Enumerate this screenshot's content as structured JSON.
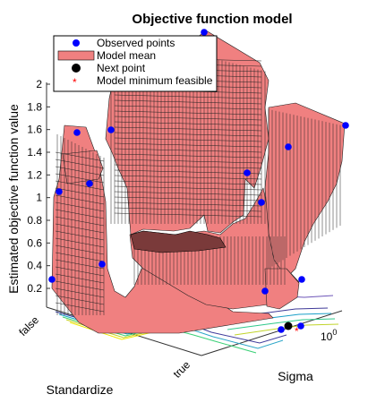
{
  "chart_data": {
    "type": "surface",
    "title": "Objective function model",
    "xlabel": "Sigma",
    "ylabel": "Standardize",
    "zlabel": "Estimated objective function value",
    "x_ticks": [
      "10⁰"
    ],
    "y_categories": [
      "false",
      "true"
    ],
    "z_ticks": [
      "0.2",
      "0.4",
      "0.6",
      "0.8",
      "1",
      "1.2",
      "1.4",
      "1.6",
      "1.8",
      "2"
    ],
    "zlim": [
      0.1,
      2.15
    ],
    "legend": {
      "position": "top-left",
      "entries": [
        {
          "label": "Observed points",
          "marker": "filled-circle",
          "color": "#0000ff"
        },
        {
          "label": "Model mean",
          "marker": "patch",
          "color": "#f08080"
        },
        {
          "label": "Next point",
          "marker": "filled-circle",
          "color": "#000000"
        },
        {
          "label": "Model minimum feasible",
          "marker": "asterisk",
          "color": "#ff0000"
        }
      ]
    },
    "surface_color": "#f08080",
    "observed_points_note": "values estimated by eye"
  }
}
